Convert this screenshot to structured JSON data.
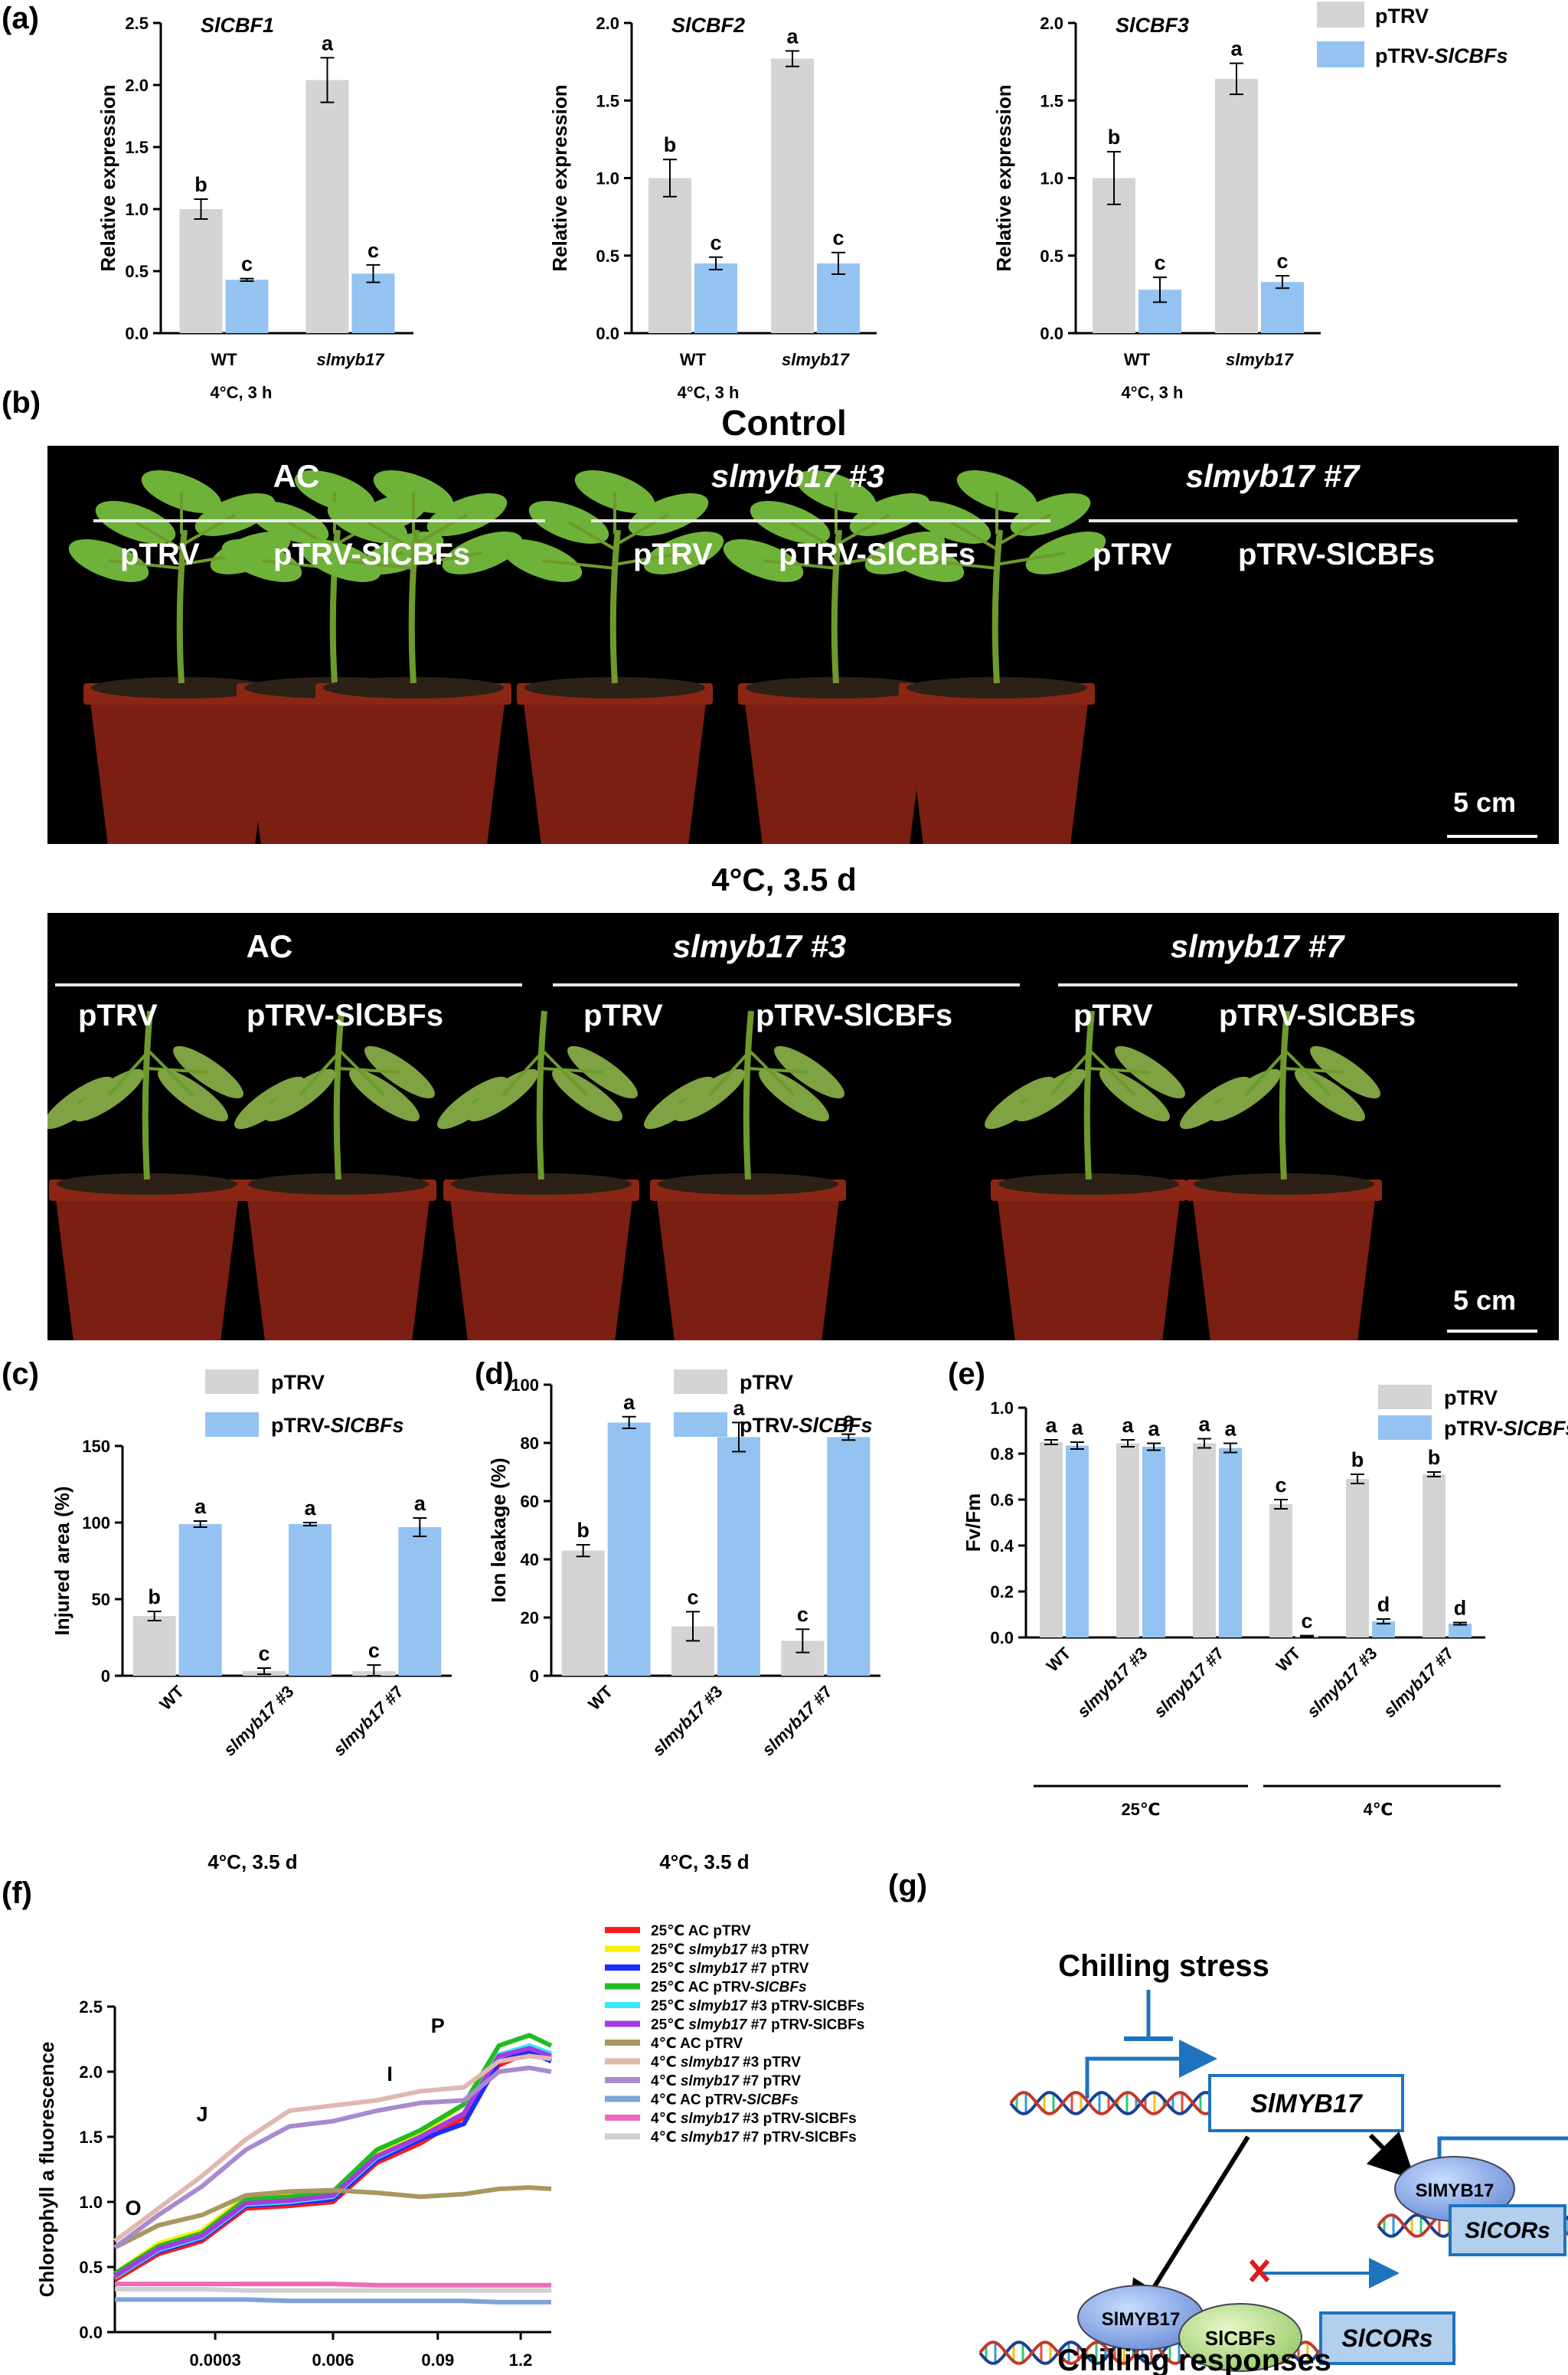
{
  "panels": {
    "a": "(a)",
    "b": "(b)",
    "c": "(c)",
    "d": "(d)",
    "e": "(e)",
    "f": "(f)",
    "g": "(g)"
  },
  "colors": {
    "pTRV": "#d4d4d4",
    "pTRV-SlCBFs": "#94c3f2"
  },
  "panel_a": {
    "legend": [
      "pTRV",
      "pTRV-SlCBFs"
    ],
    "charts": [
      {
        "gene": "SlCBF1",
        "ylabel": "Relative expression",
        "ylim": [
          0,
          2.5
        ],
        "yticks": [
          "0.0",
          "0.5",
          "1.0",
          "1.5",
          "2.0",
          "2.5"
        ],
        "categories": [
          "WT",
          "slmyb17"
        ],
        "xnote": "4°C, 3 h",
        "series": [
          {
            "name": "pTRV",
            "values": [
              1.0,
              2.04
            ],
            "err": [
              0.08,
              0.18
            ],
            "sig": [
              "b",
              "a"
            ]
          },
          {
            "name": "pTRV-SlCBFs",
            "values": [
              0.43,
              0.48
            ],
            "err": [
              0.01,
              0.07
            ],
            "sig": [
              "c",
              "c"
            ]
          }
        ]
      },
      {
        "gene": "SlCBF2",
        "ylabel": "Relative expression",
        "ylim": [
          0,
          2.0
        ],
        "yticks": [
          "0.0",
          "0.5",
          "1.0",
          "1.5",
          "2.0"
        ],
        "categories": [
          "WT",
          "slmyb17"
        ],
        "xnote": "4°C, 3 h",
        "series": [
          {
            "name": "pTRV",
            "values": [
              1.0,
              1.77
            ],
            "err": [
              0.12,
              0.05
            ],
            "sig": [
              "b",
              "a"
            ]
          },
          {
            "name": "pTRV-SlCBFs",
            "values": [
              0.45,
              0.45
            ],
            "err": [
              0.04,
              0.07
            ],
            "sig": [
              "c",
              "c"
            ]
          }
        ]
      },
      {
        "gene": "SlCBF3",
        "ylabel": "Relative expression",
        "ylim": [
          0,
          2.0
        ],
        "yticks": [
          "0.0",
          "0.5",
          "1.0",
          "1.5",
          "2.0"
        ],
        "categories": [
          "WT",
          "slmyb17"
        ],
        "xnote": "4°C, 3 h",
        "series": [
          {
            "name": "pTRV",
            "values": [
              1.0,
              1.64
            ],
            "err": [
              0.17,
              0.1
            ],
            "sig": [
              "b",
              "a"
            ]
          },
          {
            "name": "pTRV-SlCBFs",
            "values": [
              0.28,
              0.33
            ],
            "err": [
              0.08,
              0.04
            ],
            "sig": [
              "c",
              "c"
            ]
          }
        ]
      }
    ]
  },
  "panel_b": {
    "control": {
      "title": "Control",
      "groups": [
        "AC",
        "slmyb17 #3",
        "slmyb17 #7"
      ],
      "labels": [
        "pTRV",
        "pTRV-SlCBFs",
        "pTRV",
        "pTRV-SlCBFs",
        "pTRV",
        "pTRV-SlCBFs"
      ],
      "scale": "5 cm"
    },
    "cold": {
      "title": "4°C,  3.5 d",
      "groups": [
        "AC",
        "slmyb17 #3",
        "slmyb17 #7"
      ],
      "labels": [
        "pTRV",
        "pTRV-SlCBFs",
        "pTRV",
        "pTRV-SlCBFs",
        "pTRV",
        "pTRV-SlCBFs"
      ],
      "scale": "5 cm"
    }
  },
  "chart_data": [
    {
      "type": "bar",
      "panel": "c",
      "ylabel": "Injured area (%)",
      "ylim": [
        0,
        150
      ],
      "yticks": [
        "0",
        "50",
        "100",
        "150"
      ],
      "categories": [
        "WT",
        "slmyb17 #3",
        "slmyb17 #7"
      ],
      "xnote": "4°C,  3.5 d",
      "legend": [
        "pTRV",
        "pTRV-SlCBFs"
      ],
      "series": [
        {
          "name": "pTRV",
          "values": [
            39,
            3,
            3
          ],
          "err": [
            3,
            2,
            4
          ],
          "sig": [
            "b",
            "c",
            "c"
          ]
        },
        {
          "name": "pTRV-SlCBFs",
          "values": [
            99,
            99,
            97
          ],
          "err": [
            2,
            1,
            6
          ],
          "sig": [
            "a",
            "a",
            "a"
          ]
        }
      ]
    },
    {
      "type": "bar",
      "panel": "d",
      "ylabel": "Ion leakage (%)",
      "ylim": [
        0,
        100
      ],
      "yticks": [
        "0",
        "20",
        "40",
        "60",
        "80",
        "100"
      ],
      "categories": [
        "WT",
        "slmyb17 #3",
        "slmyb17 #7"
      ],
      "xnote": "4°C,  3.5 d",
      "legend": [
        "pTRV",
        "pTRV-SlCBFs"
      ],
      "series": [
        {
          "name": "pTRV",
          "values": [
            43,
            17,
            12
          ],
          "err": [
            2,
            5,
            4
          ],
          "sig": [
            "b",
            "c",
            "c"
          ]
        },
        {
          "name": "pTRV-SlCBFs",
          "values": [
            87,
            82,
            82
          ],
          "err": [
            2,
            5,
            1
          ],
          "sig": [
            "a",
            "a",
            "a"
          ]
        }
      ]
    },
    {
      "type": "bar",
      "panel": "e",
      "ylabel": "Fv/Fm",
      "ylim": [
        0,
        1.0
      ],
      "yticks": [
        "0.0",
        "0.2",
        "0.4",
        "0.6",
        "0.8",
        "1.0"
      ],
      "categories": [
        "WT",
        "slmyb17 #3",
        "slmyb17 #7",
        "WT",
        "slmyb17 #3",
        "slmyb17 #7"
      ],
      "groups": [
        "25℃",
        "4℃"
      ],
      "legend": [
        "pTRV",
        "pTRV-SlCBFs"
      ],
      "series": [
        {
          "name": "pTRV",
          "values": [
            0.85,
            0.845,
            0.845,
            0.58,
            0.69,
            0.71
          ],
          "err": [
            0.01,
            0.015,
            0.02,
            0.02,
            0.02,
            0.01
          ],
          "sig": [
            "a",
            "a",
            "a",
            "c",
            "b",
            "b"
          ]
        },
        {
          "name": "pTRV-SlCBFs",
          "values": [
            0.835,
            0.83,
            0.825,
            0.005,
            0.07,
            0.06
          ],
          "err": [
            0.015,
            0.015,
            0.02,
            0.003,
            0.01,
            0.005
          ],
          "sig": [
            "a",
            "a",
            "a",
            "c",
            "d",
            "d"
          ]
        }
      ]
    },
    {
      "type": "line",
      "panel": "f",
      "ylabel": "Chlorophyll a fluorescence",
      "ylim": [
        0,
        2.5
      ],
      "yticks": [
        "0.0",
        "0.5",
        "1.0",
        "1.5",
        "2.0",
        "2.5"
      ],
      "xticks": [
        "0.0003",
        "0.006",
        "0.09",
        "1.2"
      ],
      "phase_labels": [
        "O",
        "J",
        "I",
        "P"
      ],
      "x_phase": [
        0,
        0.1,
        0.2,
        0.3,
        0.4,
        0.5,
        0.6,
        0.7,
        0.8,
        0.88,
        0.95,
        1.0
      ],
      "series": [
        {
          "name": "25℃ AC pTRV",
          "color": "#ff1a1a",
          "values": [
            0.4,
            0.6,
            0.7,
            0.95,
            0.97,
            1.0,
            1.3,
            1.45,
            1.65,
            2.05,
            2.15,
            2.1
          ]
        },
        {
          "name": "25℃ slmyb17 #3 pTRV",
          "color": "#f5f000",
          "values": [
            0.45,
            0.68,
            0.78,
            1.04,
            1.06,
            1.08,
            1.36,
            1.52,
            1.75,
            2.12,
            2.18,
            2.12
          ]
        },
        {
          "name": "25℃ slmyb17 #7 pTRV",
          "color": "#1a2cff",
          "values": [
            0.42,
            0.62,
            0.72,
            0.97,
            0.99,
            1.02,
            1.32,
            1.48,
            1.6,
            2.08,
            2.15,
            2.08
          ]
        },
        {
          "name": "25℃ AC pTRV-SlCBFs",
          "color": "#22bb22",
          "values": [
            0.45,
            0.66,
            0.76,
            1.02,
            1.04,
            1.08,
            1.4,
            1.55,
            1.75,
            2.2,
            2.28,
            2.2
          ]
        },
        {
          "name": "25℃ slmyb17 #3 pTRV-SlCBFs",
          "color": "#39e8f0",
          "values": [
            0.42,
            0.63,
            0.73,
            0.98,
            1.0,
            1.04,
            1.34,
            1.5,
            1.68,
            2.13,
            2.2,
            2.14
          ]
        },
        {
          "name": "25℃ slmyb17 #7 pTRV-SlCBFs",
          "color": "#a43ce0",
          "values": [
            0.43,
            0.64,
            0.74,
            0.99,
            1.01,
            1.05,
            1.35,
            1.5,
            1.68,
            2.12,
            2.18,
            2.12
          ]
        },
        {
          "name": "4℃ AC pTRV",
          "color": "#a89860",
          "values": [
            0.65,
            0.82,
            0.9,
            1.05,
            1.08,
            1.09,
            1.07,
            1.04,
            1.06,
            1.1,
            1.11,
            1.1
          ]
        },
        {
          "name": "4℃ slmyb17 #3 pTRV",
          "color": "#e0b8b0",
          "values": [
            0.7,
            0.95,
            1.2,
            1.48,
            1.7,
            1.74,
            1.78,
            1.85,
            1.88,
            2.08,
            2.12,
            2.1
          ]
        },
        {
          "name": "4℃ slmyb17 #7 pTRV",
          "color": "#a88bcf",
          "values": [
            0.65,
            0.9,
            1.12,
            1.4,
            1.58,
            1.62,
            1.7,
            1.76,
            1.78,
            2.0,
            2.03,
            2.0
          ]
        },
        {
          "name": "4℃ AC pTRV-SlCBFs",
          "color": "#7fa3d6",
          "values": [
            0.25,
            0.25,
            0.25,
            0.25,
            0.24,
            0.24,
            0.24,
            0.24,
            0.24,
            0.23,
            0.23,
            0.23
          ]
        },
        {
          "name": "4℃ slmyb17 #3 pTRV-SlCBFs",
          "color": "#f06ab8",
          "values": [
            0.37,
            0.37,
            0.37,
            0.37,
            0.37,
            0.37,
            0.36,
            0.36,
            0.36,
            0.36,
            0.36,
            0.36
          ]
        },
        {
          "name": "4℃ slmyb17 #7 pTRV-SlCBFs",
          "color": "#cfcfcf",
          "values": [
            0.33,
            0.33,
            0.33,
            0.32,
            0.32,
            0.32,
            0.32,
            0.32,
            0.32,
            0.32,
            0.32,
            0.32
          ]
        }
      ]
    }
  ],
  "panel_g": {
    "top": "Chilling stress",
    "bottom": "Chilling responses",
    "gene_box": "SlMYB17",
    "protein": "SlMYB17",
    "partner": "SlCBFs",
    "target": "SlCORs"
  }
}
